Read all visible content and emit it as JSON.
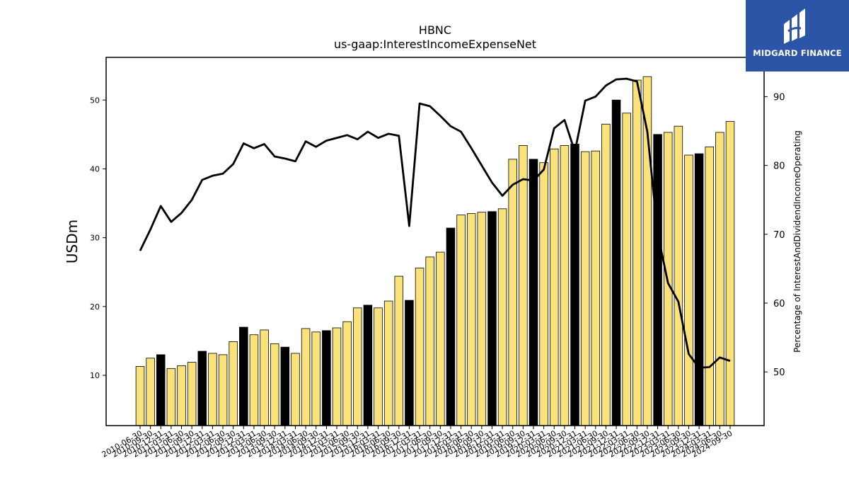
{
  "chart_data": {
    "type": "bar+line",
    "title": "HBNC",
    "subtitle": "us-gaap:InterestIncomeExpenseNet",
    "ylabel": "USDm",
    "y2label": "Percentage of InterestAndDividendIncomeOperating",
    "xlabel": "",
    "ylim": [
      2.7,
      56.2
    ],
    "y2lim": [
      42.2,
      95.7
    ],
    "yticks": [
      10,
      20,
      30,
      40,
      50
    ],
    "y2ticks": [
      50,
      60,
      70,
      80,
      90
    ],
    "legend": "none",
    "grid": false,
    "categories": [
      "2010-06-30",
      "2010-09-30",
      "2010-12-31",
      "2011-03-31",
      "2011-06-30",
      "2011-09-30",
      "2011-12-31",
      "2012-03-31",
      "2012-06-30",
      "2012-09-30",
      "2012-12-31",
      "2013-03-31",
      "2013-06-30",
      "2013-09-30",
      "2013-12-31",
      "2014-03-31",
      "2014-06-30",
      "2014-09-30",
      "2014-12-31",
      "2015-03-31",
      "2015-06-30",
      "2015-09-30",
      "2015-12-31",
      "2016-03-31",
      "2016-06-30",
      "2016-09-30",
      "2016-12-31",
      "2017-03-31",
      "2017-06-30",
      "2017-09-30",
      "2017-12-31",
      "2018-03-31",
      "2018-06-30",
      "2018-09-30",
      "2018-12-31",
      "2019-03-31",
      "2019-06-30",
      "2019-09-30",
      "2019-12-31",
      "2020-03-31",
      "2020-06-30",
      "2020-09-30",
      "2020-12-31",
      "2021-03-31",
      "2021-06-30",
      "2021-09-30",
      "2021-12-31",
      "2022-03-31",
      "2022-06-30",
      "2022-09-30",
      "2022-12-31",
      "2023-03-31",
      "2023-06-30",
      "2023-09-30",
      "2023-12-31",
      "2024-03-31",
      "2024-06-30",
      "2024-09-30"
    ],
    "highlight_indices": [
      2,
      6,
      10,
      14,
      18,
      22,
      26,
      30,
      34,
      38,
      42,
      46,
      50,
      54
    ],
    "bar_series": {
      "name": "",
      "values": [
        11.3,
        12.5,
        13.0,
        11.0,
        11.4,
        11.9,
        13.5,
        13.2,
        13.0,
        14.9,
        17.0,
        15.9,
        16.6,
        14.6,
        14.1,
        13.2,
        16.8,
        16.3,
        16.5,
        16.9,
        17.8,
        19.8,
        20.2,
        19.8,
        20.8,
        24.4,
        20.9,
        25.6,
        27.2,
        27.9,
        31.4,
        33.3,
        33.5,
        33.7,
        33.8,
        34.2,
        41.4,
        43.4,
        41.4,
        40.9,
        42.9,
        43.4,
        43.6,
        42.5,
        42.6,
        46.5,
        50.0,
        48.1,
        52.9,
        53.4,
        45.0,
        45.3,
        46.2,
        42.0,
        42.2,
        43.2,
        45.3,
        46.9
      ],
      "fill": "#f9e27a",
      "highlight_fill": "#000000"
    },
    "line_series": {
      "name": "",
      "values": [
        67.6,
        70.7,
        74.1,
        71.8,
        73.1,
        75.0,
        77.9,
        78.5,
        78.8,
        80.2,
        83.2,
        82.5,
        83.1,
        81.3,
        81.0,
        80.6,
        83.5,
        82.7,
        83.6,
        84.0,
        84.4,
        83.8,
        84.9,
        84.0,
        84.6,
        84.3,
        71.2,
        89.0,
        88.6,
        87.2,
        85.7,
        84.9,
        82.5,
        80.0,
        77.5,
        75.6,
        77.2,
        78.0,
        77.8,
        79.4,
        85.4,
        86.6,
        82.0,
        89.4,
        90.0,
        91.6,
        92.5,
        92.6,
        92.2,
        84.9,
        70.1,
        62.9,
        60.2,
        52.6,
        50.6,
        50.7,
        52.1,
        51.6
      ],
      "color": "#000000"
    }
  },
  "logo": {
    "text": "MIDGARD FINANCE",
    "background": "#2c55a8"
  }
}
